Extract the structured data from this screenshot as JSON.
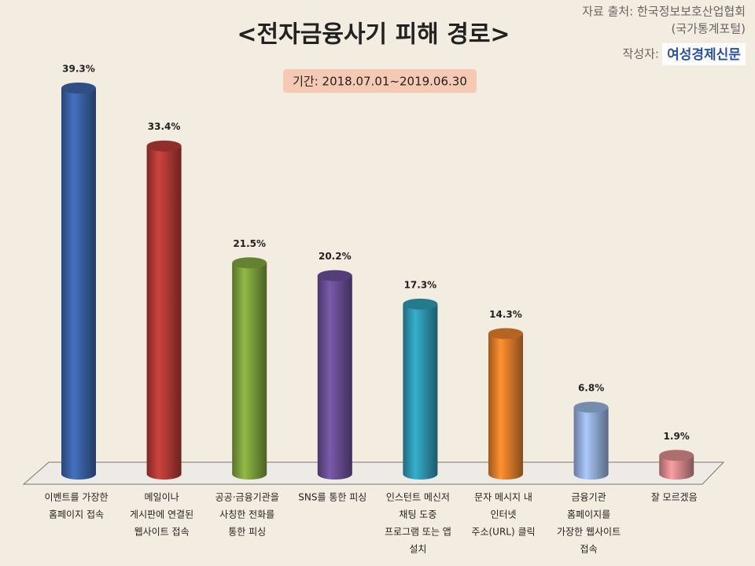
{
  "chart_data": {
    "type": "bar",
    "title": "<전자금융사기 피해 경로>",
    "source": [
      "자료 출처: 한국정보보호산업협회",
      "(국가통계포털)"
    ],
    "author_label": "작성자:",
    "author": "여성경제신문",
    "period": "기간: 2018.07.01~2019.06.30",
    "categories": [
      [
        "이벤트를 가장한",
        "홈페이지 접속"
      ],
      [
        "메일이나",
        "게시판에 연결된",
        "웹사이트 접속"
      ],
      [
        "공공·금융기관을",
        "사칭한 전화를",
        "통한 피싱"
      ],
      [
        "SNS를 통한 피싱"
      ],
      [
        "인스턴트 메신저",
        "채팅 도중",
        "프로그램 또는 앱",
        "설치"
      ],
      [
        "문자 메시지 내",
        "인터넷",
        "주소(URL) 클릭"
      ],
      [
        "금융기관",
        "홈페이지를",
        "가장한 웹사이트",
        "접속"
      ],
      [
        "잘 모르겠음"
      ]
    ],
    "values": [
      39.3,
      33.4,
      21.5,
      20.2,
      17.3,
      14.3,
      6.8,
      1.9
    ],
    "value_labels": [
      "39.3%",
      "33.4%",
      "21.5%",
      "20.2%",
      "17.3%",
      "14.3%",
      "6.8%",
      "1.9%"
    ],
    "colors": [
      "#3b62a6",
      "#b43a36",
      "#7ea23c",
      "#6a4e95",
      "#2f98b2",
      "#e27e2b",
      "#94afdb",
      "#d98a8c"
    ]
  }
}
